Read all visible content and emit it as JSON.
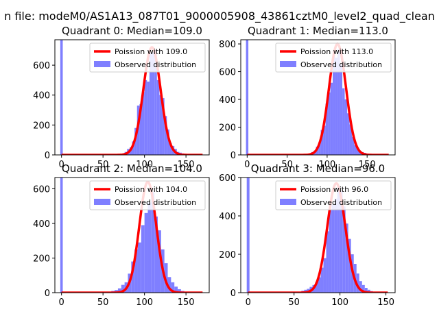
{
  "figure_title": "n file: modeM0/AS1A13_087T01_9000005908_43861cztM0_level2_quad_clean",
  "colors": {
    "hist": "#7f7fff",
    "poisson": "#ff0000",
    "legend_border": "#cccccc"
  },
  "chart_data": [
    {
      "type": "bar",
      "title": "Quadrant 0: Median=109.0",
      "legend": [
        "Poission with 109.0",
        "Observed distribution"
      ],
      "legend_position": "top-right",
      "xlim": [
        -8,
        178
      ],
      "ylim": [
        0,
        770
      ],
      "xticks": [
        0,
        50,
        100,
        150
      ],
      "yticks": [
        0,
        200,
        400,
        600
      ],
      "poisson_mean": 109,
      "poisson_peak": 720,
      "spike": {
        "x": 0,
        "height": 770
      },
      "bins": {
        "x": [
          70,
          73,
          76,
          79,
          82,
          85,
          88,
          91,
          94,
          97,
          100,
          103,
          106,
          109,
          112,
          115,
          118,
          121,
          124,
          127,
          130,
          133,
          136,
          139,
          142,
          145,
          148,
          151
        ],
        "values": [
          5,
          10,
          20,
          40,
          50,
          90,
          180,
          330,
          340,
          420,
          500,
          490,
          680,
          690,
          700,
          500,
          400,
          380,
          260,
          170,
          80,
          60,
          40,
          20,
          15,
          10,
          5,
          2
        ]
      }
    },
    {
      "type": "bar",
      "title": "Quadrant 1: Median=113.0",
      "legend": [
        "Poission with 113.0",
        "Observed distribution"
      ],
      "legend_position": "top-right",
      "xlim": [
        -8,
        185
      ],
      "ylim": [
        0,
        830
      ],
      "xticks": [
        0,
        50,
        100,
        150
      ],
      "yticks": [
        0,
        200,
        400,
        600,
        800
      ],
      "poisson_mean": 113,
      "poisson_peak": 800,
      "spike": {
        "x": 0,
        "height": 830
      },
      "bins": {
        "x": [
          74,
          77,
          80,
          83,
          86,
          89,
          92,
          95,
          98,
          101,
          104,
          107,
          110,
          113,
          116,
          119,
          122,
          125,
          128,
          131,
          134,
          137,
          140,
          143,
          146,
          149,
          152,
          155
        ],
        "values": [
          5,
          10,
          20,
          30,
          60,
          90,
          180,
          210,
          370,
          450,
          520,
          750,
          700,
          760,
          650,
          480,
          400,
          300,
          220,
          130,
          70,
          50,
          30,
          20,
          15,
          10,
          5,
          2
        ]
      }
    },
    {
      "type": "bar",
      "title": "Quadrant 2: Median=104.0",
      "legend": [
        "Poission with 104.0",
        "Observed distribution"
      ],
      "legend_position": "top-right",
      "xlim": [
        -8,
        178
      ],
      "ylim": [
        0,
        665
      ],
      "xticks": [
        0,
        50,
        100,
        150
      ],
      "yticks": [
        0,
        200,
        400,
        600
      ],
      "poisson_mean": 104,
      "poisson_peak": 640,
      "spike": {
        "x": 0,
        "height": 665
      },
      "bins": {
        "x": [
          52,
          56,
          60,
          64,
          68,
          72,
          76,
          80,
          84,
          88,
          92,
          96,
          100,
          104,
          108,
          112,
          116,
          120,
          124,
          128,
          132,
          136,
          140,
          144,
          148,
          152,
          156
        ],
        "values": [
          3,
          5,
          10,
          15,
          25,
          45,
          60,
          110,
          180,
          250,
          290,
          390,
          460,
          520,
          580,
          440,
          360,
          250,
          170,
          90,
          60,
          35,
          20,
          10,
          5,
          3,
          2
        ]
      }
    },
    {
      "type": "bar",
      "title": "Quadrant 3: Median=96.0",
      "legend": [
        "Poission with 96.0",
        "Observed distribution"
      ],
      "legend_position": "top-right",
      "xlim": [
        -8,
        160
      ],
      "ylim": [
        0,
        600
      ],
      "xticks": [
        0,
        50,
        100,
        150
      ],
      "yticks": [
        0,
        200,
        400,
        600
      ],
      "poisson_mean": 96,
      "poisson_peak": 570,
      "spike": {
        "x": 0,
        "height": 600
      },
      "bins": {
        "x": [
          52,
          55,
          58,
          61,
          64,
          67,
          70,
          73,
          76,
          79,
          82,
          85,
          88,
          91,
          94,
          97,
          100,
          103,
          106,
          109,
          112,
          115,
          118,
          121,
          124,
          127,
          130,
          133,
          136
        ],
        "values": [
          3,
          5,
          10,
          15,
          20,
          30,
          40,
          55,
          80,
          130,
          180,
          320,
          430,
          460,
          490,
          550,
          530,
          450,
          360,
          280,
          200,
          150,
          100,
          60,
          40,
          25,
          15,
          8,
          3
        ]
      }
    }
  ]
}
